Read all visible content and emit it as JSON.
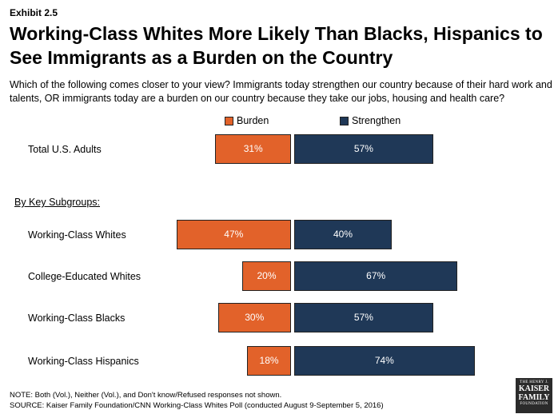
{
  "exhibit": "Exhibit 2.5",
  "title": "Working-Class Whites More Likely Than Blacks, Hispanics to See Immigrants as a Burden on the Country",
  "subtitle": "Which of the following comes closer to your view? Immigrants today strengthen our country because of their hard work and talents, OR immigrants today are a burden on our country because they take our jobs, housing and health care?",
  "subgroup_heading": "By Key Subgroups:",
  "colors": {
    "burden": "#E2622A",
    "strengthen": "#1F3857"
  },
  "chart_data": {
    "type": "bar",
    "orientation": "horizontal-diverging",
    "categories": [
      "Total U.S. Adults",
      "Working-Class Whites",
      "College-Educated Whites",
      "Working-Class Blacks",
      "Working-Class Hispanics"
    ],
    "series": [
      {
        "name": "Burden",
        "values": [
          31,
          47,
          20,
          30,
          18
        ],
        "labels": [
          "31%",
          "47%",
          "20%",
          "30%",
          "18%"
        ]
      },
      {
        "name": "Strengthen",
        "values": [
          57,
          40,
          67,
          57,
          74
        ],
        "labels": [
          "57%",
          "40%",
          "67%",
          "57%",
          "74%"
        ]
      }
    ],
    "legend_position": "top"
  },
  "notes": {
    "note": "NOTE: Both (Vol.), Neither (Vol.), and Don't know/Refused responses not shown.",
    "source": "SOURCE: Kaiser Family Foundation/CNN Working-Class Whites Poll (conducted August 9-September 5, 2016)"
  },
  "logo": {
    "top": "THE HENRY J.",
    "line1": "KAISER",
    "line2": "FAMILY",
    "bottom": "FOUNDATION"
  }
}
